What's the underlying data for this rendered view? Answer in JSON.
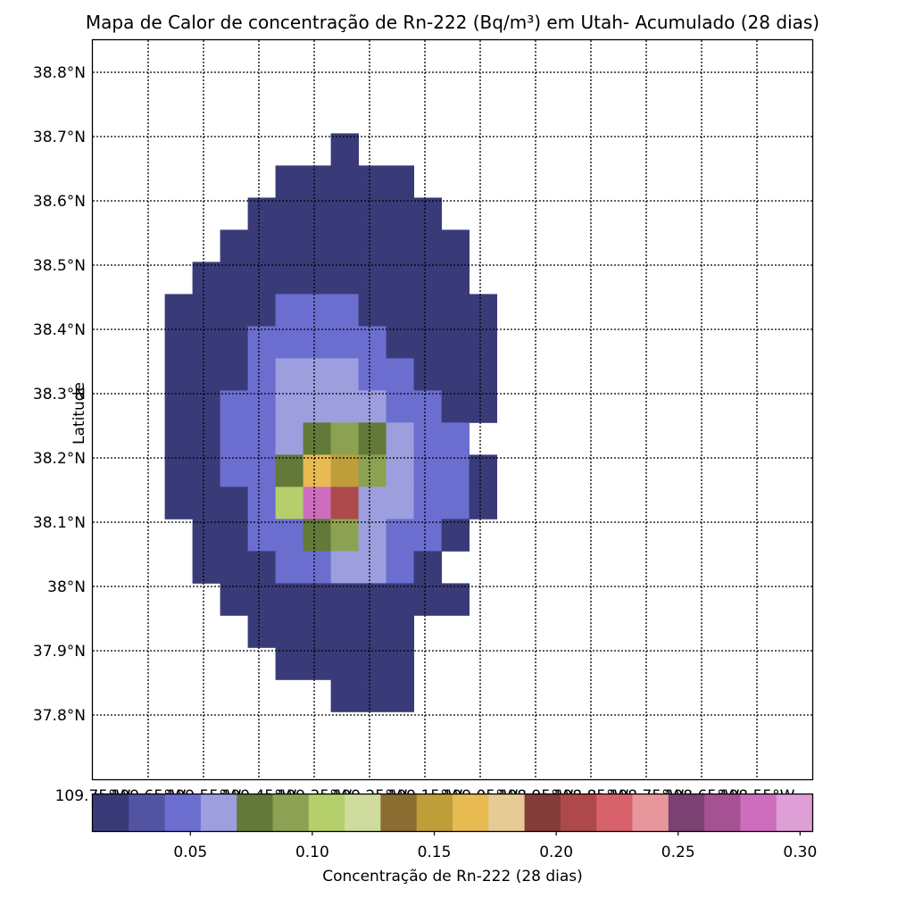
{
  "chart_data": {
    "type": "heatmap",
    "title": "Mapa de Calor de concentração de Rn-222 (Bq/m³) em Utah- Acumulado (28 dias)",
    "ylabel": "Latitude",
    "xlabel_ticks": [
      "109.75°W",
      "109.65°W",
      "109.55°W",
      "109.45°W",
      "109.35°W",
      "109.25°W",
      "109.15°W",
      "109.05°W",
      "108.95°W",
      "108.85°W",
      "108.75°W",
      "108.65°W",
      "108.55°W"
    ],
    "y_ticks": [
      "38.8°N",
      "38.7°N",
      "38.6°N",
      "38.5°N",
      "38.4°N",
      "38.3°N",
      "38.2°N",
      "38.1°N",
      "38°N",
      "37.9°N",
      "37.8°N"
    ],
    "xlim": [
      -109.75,
      -108.45
    ],
    "ylim": [
      37.7,
      38.85
    ],
    "grid": true,
    "colorbar": {
      "label": "Concentração de Rn-222 (28 dias)",
      "ticks": [
        "0.05",
        "0.10",
        "0.15",
        "0.20",
        "0.25",
        "0.30"
      ],
      "range": [
        0.01,
        0.305
      ],
      "colors": [
        "#393b79",
        "#5254a3",
        "#6b6ecf",
        "#9c9ede",
        "#637939",
        "#8ca252",
        "#b5cf6b",
        "#cedb9c",
        "#8c6d31",
        "#bd9e39",
        "#e7ba52",
        "#e7cb94",
        "#843c39",
        "#ad494a",
        "#d6616b",
        "#e7969c",
        "#7b4173",
        "#a55194",
        "#ce6dbd",
        "#de9ed6"
      ]
    },
    "grid_cells": {
      "lon_start": -109.595,
      "lat_start": 38.68,
      "lon_step": 0.05,
      "lat_step": -0.05,
      "rows": [
        "......0.....",
        "....00000...",
        "...0000000..",
        "..000000000.",
        ".0000000000.",
        "000011100000",
        "000111110000",
        "000122211000",
        "001123321100",
        "00112454211.",
        "00114nk62110",
        "0001bmo22110",
        ".0011463110.",
        ".000112210..",
        "..000000000.",
        "...000000...",
        "....00000...",
        "......000..."
      ],
      "level_key": {
        "0": 0.02,
        "1": 0.04,
        "2": 0.055,
        "3": 0.065,
        "4": 0.075,
        "5": 0.085,
        "6": 0.095,
        "b": 0.105,
        "k": 0.145,
        "m": 0.285,
        "n": 0.165,
        "o": 0.215
      }
    }
  }
}
